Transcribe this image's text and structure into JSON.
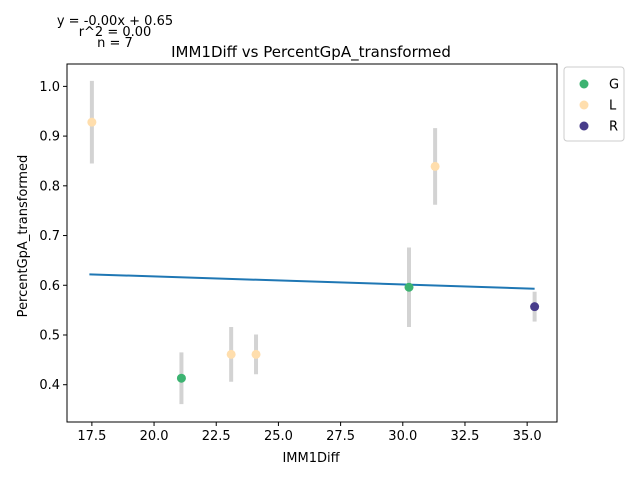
{
  "chart_data": {
    "type": "scatter",
    "title": "IMM1Diff vs PercentGpA_transformed",
    "xlabel": "IMM1Diff",
    "ylabel": "PercentGpA_transformed",
    "xlim": [
      16.5,
      36.2
    ],
    "ylim": [
      0.325,
      1.045
    ],
    "xticks": [
      "17.5",
      "20.0",
      "22.5",
      "25.0",
      "27.5",
      "30.0",
      "32.5",
      "35.0"
    ],
    "yticks": [
      "0.4",
      "0.5",
      "0.6",
      "0.7",
      "0.8",
      "0.9",
      "1.0"
    ],
    "annotations": [
      "y = -0.00x + 0.65",
      "r^2 = 0.00",
      "n = 7"
    ],
    "legend_position": "outside-right-top",
    "series": [
      {
        "name": "G",
        "color": "#3cb371",
        "points": [
          {
            "x": 21.1,
            "y": 0.413,
            "err": 0.052
          },
          {
            "x": 30.25,
            "y": 0.596,
            "err": 0.08
          }
        ]
      },
      {
        "name": "L",
        "color": "#ffdead",
        "points": [
          {
            "x": 17.5,
            "y": 0.928,
            "err": 0.083
          },
          {
            "x": 23.1,
            "y": 0.461,
            "err": 0.055
          },
          {
            "x": 24.1,
            "y": 0.461,
            "err": 0.04
          },
          {
            "x": 31.3,
            "y": 0.839,
            "err": 0.077
          }
        ]
      },
      {
        "name": "R",
        "color": "#483d8b",
        "points": [
          {
            "x": 35.3,
            "y": 0.557,
            "err": 0.03
          }
        ]
      }
    ],
    "regression": {
      "color": "#1f77b4",
      "x": [
        17.4,
        35.3
      ],
      "y": [
        0.622,
        0.593
      ]
    },
    "errorbar_color": "#d3d3d3",
    "grid": false
  }
}
